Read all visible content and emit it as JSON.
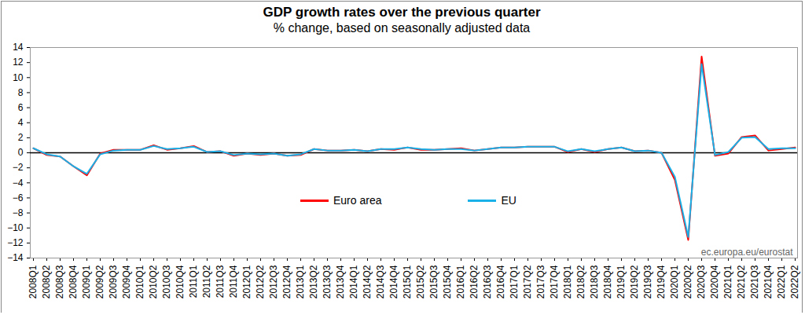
{
  "chart_data": {
    "type": "line",
    "title": "GDP growth rates over the previous quarter",
    "subtitle": "% change, based on seasonally adjusted data",
    "source": "ec.europa.eu/eurostat",
    "categories": [
      "2008Q1",
      "2008Q2",
      "2008Q3",
      "2008Q4",
      "2009Q1",
      "2009Q2",
      "2009Q3",
      "2009Q4",
      "2010Q1",
      "2010Q2",
      "2010Q3",
      "2010Q4",
      "2011Q1",
      "2011Q2",
      "2011Q3",
      "2011Q4",
      "2012Q1",
      "2012Q2",
      "2012Q3",
      "2012Q4",
      "2013Q1",
      "2013Q2",
      "2013Q3",
      "2013Q4",
      "2014Q1",
      "2014Q2",
      "2014Q3",
      "2014Q4",
      "2015Q1",
      "2015Q2",
      "2015Q3",
      "2015Q4",
      "2016Q1",
      "2016Q2",
      "2016Q3",
      "2016Q4",
      "2017Q1",
      "2017Q2",
      "2017Q3",
      "2017Q4",
      "2018Q1",
      "2018Q2",
      "2018Q3",
      "2018Q4",
      "2019Q1",
      "2019Q2",
      "2019Q3",
      "2019Q4",
      "2020Q1",
      "2020Q2",
      "2020Q3",
      "2020Q4",
      "2021Q1",
      "2021Q2",
      "2021Q3",
      "2021Q4",
      "2022Q1",
      "2022Q2"
    ],
    "series": [
      {
        "name": "Euro area",
        "color": "#ff0000",
        "values": [
          0.6,
          -0.3,
          -0.5,
          -1.8,
          -3.0,
          -0.1,
          0.4,
          0.4,
          0.4,
          1.0,
          0.4,
          0.6,
          0.9,
          0.1,
          0.2,
          -0.4,
          -0.1,
          -0.3,
          -0.1,
          -0.4,
          -0.3,
          0.5,
          0.3,
          0.3,
          0.4,
          0.2,
          0.5,
          0.4,
          0.7,
          0.4,
          0.4,
          0.5,
          0.6,
          0.3,
          0.5,
          0.7,
          0.7,
          0.8,
          0.8,
          0.8,
          0.1,
          0.5,
          0.1,
          0.5,
          0.7,
          0.2,
          0.3,
          0.0,
          -3.6,
          -11.6,
          12.8,
          -0.4,
          -0.1,
          2.1,
          2.3,
          0.3,
          0.5,
          0.7
        ]
      },
      {
        "name": "EU",
        "color": "#1ab0e8",
        "values": [
          0.6,
          -0.2,
          -0.5,
          -1.8,
          -2.8,
          -0.2,
          0.3,
          0.4,
          0.4,
          0.9,
          0.5,
          0.6,
          0.8,
          0.1,
          0.2,
          -0.3,
          -0.1,
          -0.2,
          -0.1,
          -0.4,
          -0.2,
          0.5,
          0.3,
          0.3,
          0.4,
          0.2,
          0.5,
          0.5,
          0.7,
          0.5,
          0.4,
          0.5,
          0.5,
          0.3,
          0.5,
          0.7,
          0.7,
          0.8,
          0.8,
          0.8,
          0.2,
          0.5,
          0.2,
          0.5,
          0.7,
          0.2,
          0.3,
          0.0,
          -3.2,
          -11.2,
          11.8,
          -0.3,
          0.1,
          2.0,
          2.1,
          0.5,
          0.6,
          0.6
        ]
      }
    ],
    "ylim": [
      -14,
      14
    ],
    "yticks": [
      -14,
      -12,
      -10,
      -8,
      -6,
      -4,
      -2,
      0,
      2,
      4,
      6,
      8,
      10,
      12,
      14
    ],
    "grid": false,
    "legend": "center",
    "marker": "none",
    "line_style": "solid"
  }
}
